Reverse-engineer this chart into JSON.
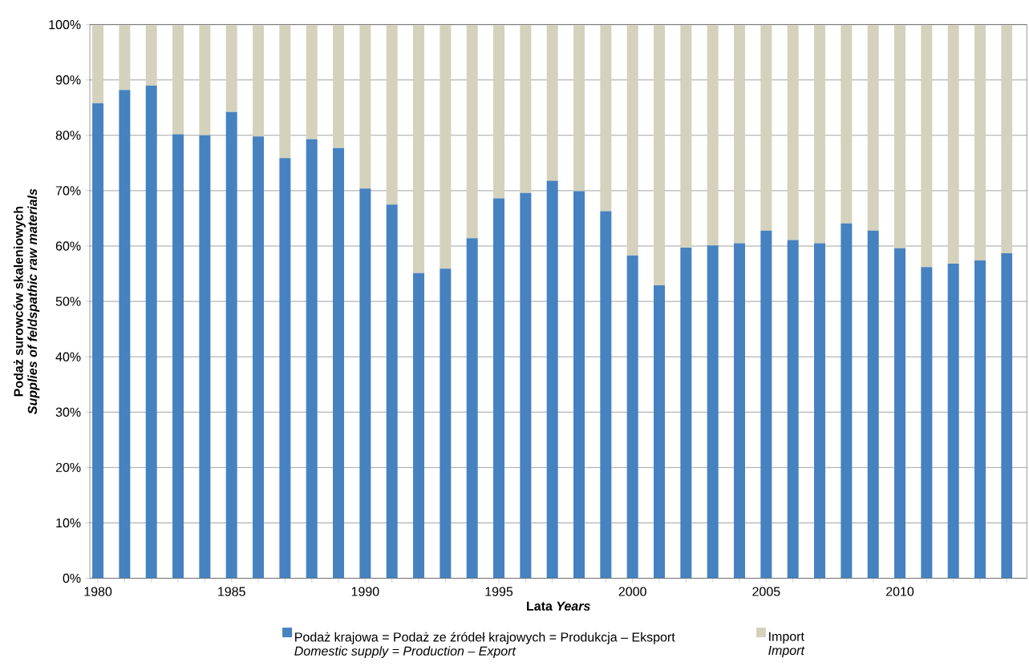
{
  "chart_data": {
    "type": "bar",
    "stacked": true,
    "xlabel": "Lata   *Years*",
    "ylabel": "Podaż surowców skaleniowych\n*Supplies of feldspathic raw materials*",
    "categories": [
      "1980",
      null,
      null,
      null,
      null,
      "1985",
      null,
      null,
      null,
      null,
      "1990",
      null,
      null,
      null,
      null,
      "1995",
      null,
      null,
      null,
      null,
      "2000",
      null,
      null,
      null,
      null,
      "2005",
      null,
      null,
      null,
      null,
      "2010",
      null,
      null,
      null,
      null
    ],
    "series": [
      {
        "name": "Podaż krajowa = Podaż ze źródeł krajowych = Produkcja – Eksport\n*Domestic supply = Production – Export*",
        "color": "#4682c0",
        "values": [
          85.8,
          88.2,
          89.0,
          80.2,
          80.0,
          84.2,
          79.8,
          75.9,
          79.3,
          77.7,
          70.4,
          67.5,
          55.1,
          55.9,
          61.4,
          68.6,
          69.6,
          71.8,
          69.9,
          66.3,
          58.3,
          52.9,
          59.7,
          60.1,
          60.5,
          62.8,
          61.1,
          60.5,
          64.1,
          62.8,
          59.6,
          56.2,
          56.8,
          57.4,
          58.7
        ]
      },
      {
        "name": "Import\n*Import*",
        "color": "#d4d2bc",
        "values": [
          14.2,
          11.8,
          11.0,
          19.8,
          20.0,
          15.8,
          20.2,
          24.1,
          20.7,
          22.3,
          29.6,
          32.5,
          44.9,
          44.1,
          38.6,
          31.4,
          30.4,
          28.2,
          30.1,
          33.7,
          41.7,
          47.1,
          40.3,
          39.9,
          39.5,
          37.2,
          38.9,
          39.5,
          35.9,
          37.2,
          40.4,
          43.8,
          43.2,
          42.6,
          41.3
        ]
      }
    ],
    "ylim": [
      0,
      100
    ],
    "yticks": [
      {
        "value": 0,
        "label": "0%"
      },
      {
        "value": 10,
        "label": "10%"
      },
      {
        "value": 20,
        "label": "20%"
      },
      {
        "value": 30,
        "label": "30%"
      },
      {
        "value": 40,
        "label": "40%"
      },
      {
        "value": 50,
        "label": "50%"
      },
      {
        "value": 60,
        "label": "60%"
      },
      {
        "value": 70,
        "label": "70%"
      },
      {
        "value": 80,
        "label": "80%"
      },
      {
        "value": 90,
        "label": "90%"
      },
      {
        "value": 100,
        "label": "100%"
      }
    ],
    "grid": "y",
    "legend": "bottom"
  }
}
